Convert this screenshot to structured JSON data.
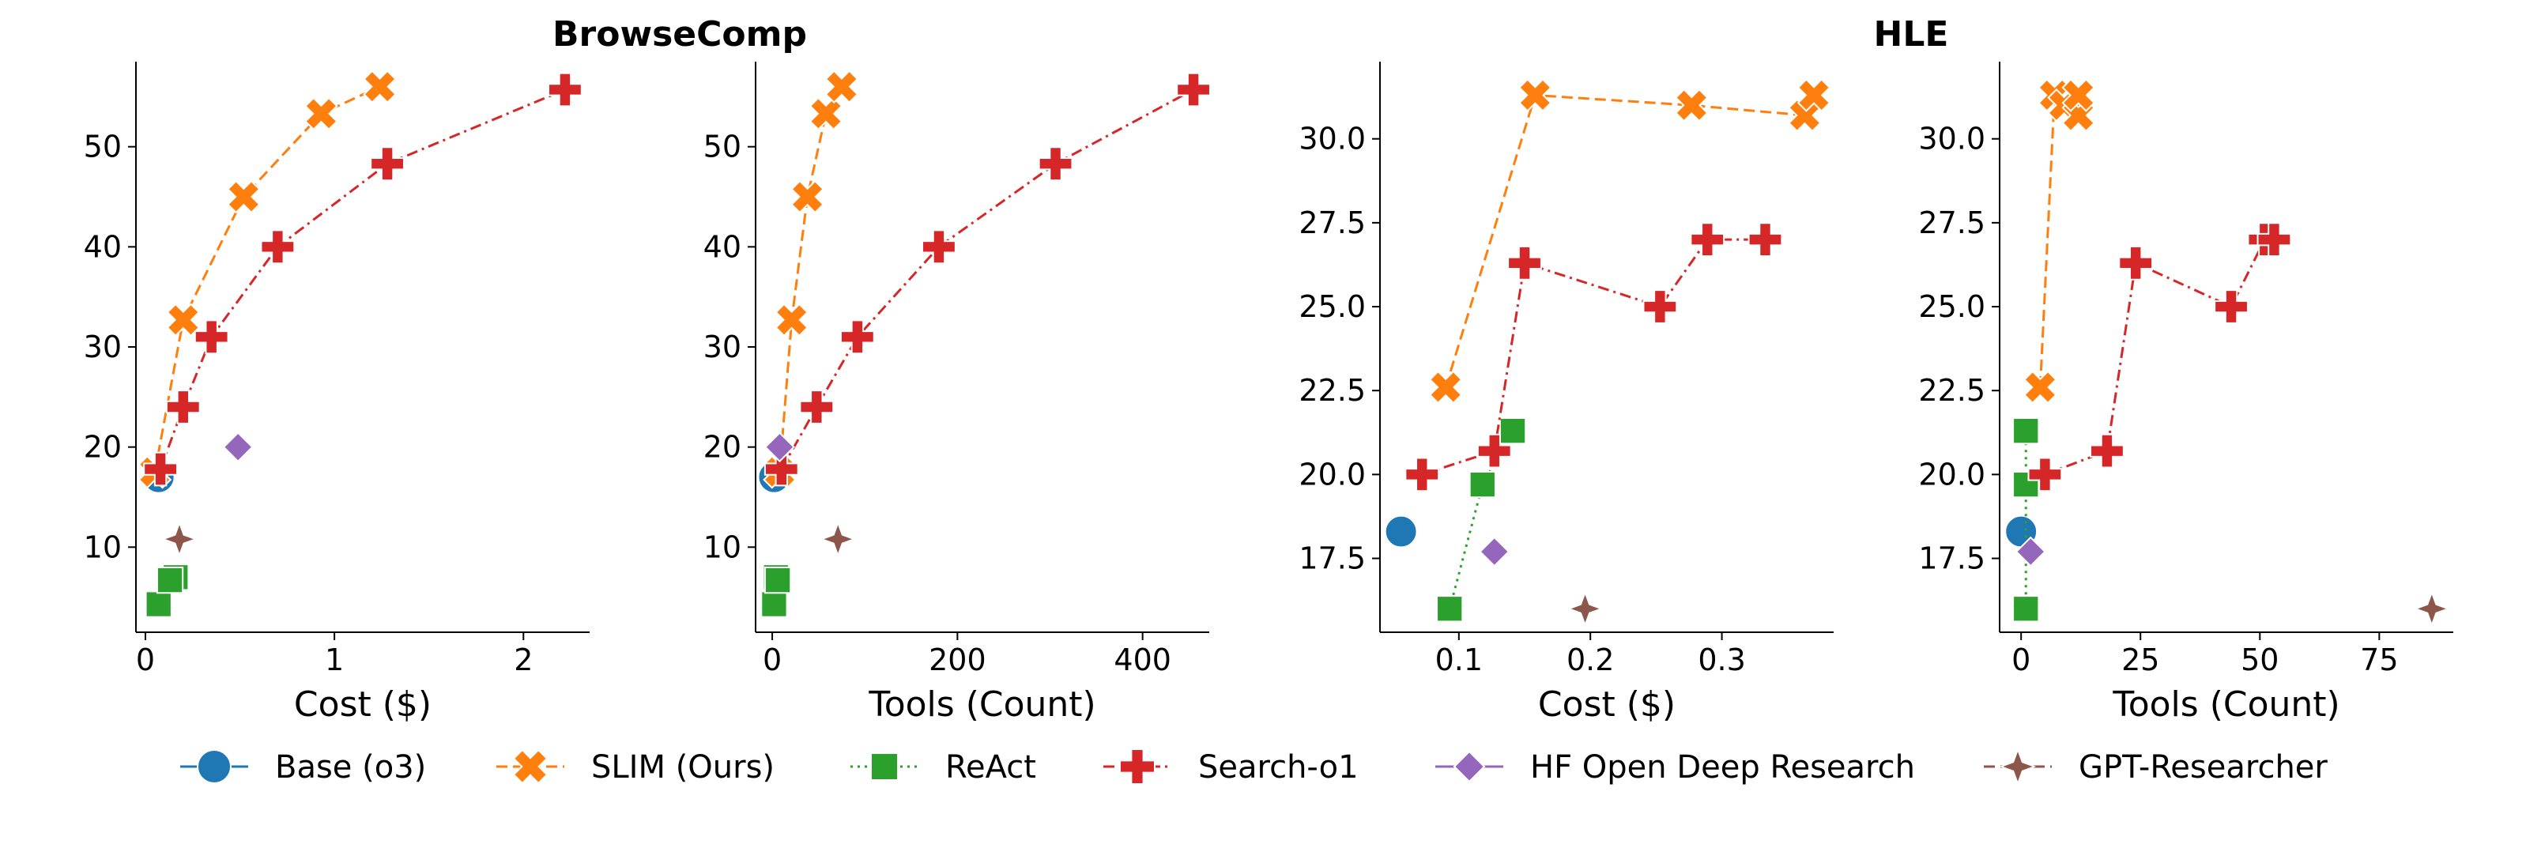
{
  "figure": {
    "group_titles": [
      "BrowseComp",
      "HLE"
    ]
  },
  "colors": {
    "Base (o3)": "#1f77b4",
    "SLIM (Ours)": "#ff7f0e",
    "ReAct": "#2ca02c",
    "Search-o1": "#d62728",
    "HF Open Deep Research": "#9467bd",
    "GPT-Researcher": "#8c564b"
  },
  "legend": {
    "entries": [
      {
        "name": "Base (o3)",
        "marker": "circle",
        "line": "solid"
      },
      {
        "name": "SLIM (Ours)",
        "marker": "x",
        "line": "dashed"
      },
      {
        "name": "ReAct",
        "marker": "square",
        "line": "dotted"
      },
      {
        "name": "Search-o1",
        "marker": "plus",
        "line": "dashdot"
      },
      {
        "name": "HF Open Deep Research",
        "marker": "diamond",
        "line": "solid"
      },
      {
        "name": "GPT-Researcher",
        "marker": "star4",
        "line": "dashed"
      }
    ],
    "placement": "bottom-center"
  },
  "chart_data": [
    {
      "type": "line",
      "group": "BrowseComp",
      "xlabel": "Cost ($)",
      "ylabel": "",
      "xlim": [
        -0.05,
        2.35
      ],
      "ylim": [
        1.5,
        58.5
      ],
      "xticks": [
        0,
        1,
        2
      ],
      "xtick_labels": [
        "0",
        "1",
        "2"
      ],
      "yticks": [
        10,
        20,
        30,
        40,
        50
      ],
      "ytick_labels": [
        "10",
        "20",
        "30",
        "40",
        "50"
      ],
      "grid": false,
      "series": [
        {
          "name": "Base (o3)",
          "x": [
            0.07
          ],
          "y": [
            17
          ]
        },
        {
          "name": "SLIM (Ours)",
          "x": [
            0.05,
            0.2,
            0.52,
            0.93,
            1.24
          ],
          "y": [
            17.5,
            32.7,
            45,
            53.3,
            56
          ]
        },
        {
          "name": "ReAct",
          "x": [
            0.07,
            0.16,
            0.13
          ],
          "y": [
            4.3,
            7,
            6.7
          ]
        },
        {
          "name": "Search-o1",
          "x": [
            0.08,
            0.2,
            0.35,
            0.7,
            1.28,
            2.22
          ],
          "y": [
            17.8,
            24,
            31,
            40,
            48.3,
            55.7
          ]
        },
        {
          "name": "HF Open Deep Research",
          "x": [
            0.49
          ],
          "y": [
            20
          ]
        },
        {
          "name": "GPT-Researcher",
          "x": [
            0.18
          ],
          "y": [
            10.8
          ]
        }
      ]
    },
    {
      "type": "line",
      "group": "BrowseComp",
      "xlabel": "Tools (Count)",
      "ylabel": "",
      "xlim": [
        -18,
        472
      ],
      "ylim": [
        1.5,
        58.5
      ],
      "xticks": [
        0,
        200,
        400
      ],
      "xtick_labels": [
        "0",
        "200",
        "400"
      ],
      "yticks": [
        10,
        20,
        30,
        40,
        50
      ],
      "ytick_labels": [
        "10",
        "20",
        "30",
        "40",
        "50"
      ],
      "grid": false,
      "series": [
        {
          "name": "Base (o3)",
          "x": [
            2
          ],
          "y": [
            17
          ]
        },
        {
          "name": "SLIM (Ours)",
          "x": [
            8,
            21,
            38,
            58,
            75
          ],
          "y": [
            17.5,
            32.7,
            45,
            53.3,
            56
          ]
        },
        {
          "name": "ReAct",
          "x": [
            2,
            4,
            6
          ],
          "y": [
            4.3,
            7,
            6.7
          ]
        },
        {
          "name": "Search-o1",
          "x": [
            10,
            48,
            92,
            180,
            306,
            455
          ],
          "y": [
            17.8,
            24,
            31,
            40,
            48.3,
            55.7
          ]
        },
        {
          "name": "HF Open Deep Research",
          "x": [
            8
          ],
          "y": [
            20
          ]
        },
        {
          "name": "GPT-Researcher",
          "x": [
            71
          ],
          "y": [
            10.8
          ]
        }
      ]
    },
    {
      "type": "line",
      "group": "HLE",
      "xlabel": "Cost ($)",
      "ylabel": "",
      "xlim": [
        0.04,
        0.385
      ],
      "ylim": [
        15.3,
        32.3
      ],
      "xticks": [
        0.1,
        0.2,
        0.3
      ],
      "xtick_labels": [
        "0.1",
        "0.2",
        "0.3"
      ],
      "yticks": [
        17.5,
        20.0,
        22.5,
        25.0,
        27.5,
        30.0
      ],
      "ytick_labels": [
        "17.5",
        "20.0",
        "22.5",
        "25.0",
        "27.5",
        "30.0"
      ],
      "grid": false,
      "series": [
        {
          "name": "Base (o3)",
          "x": [
            0.056
          ],
          "y": [
            18.3
          ]
        },
        {
          "name": "SLIM (Ours)",
          "x": [
            0.09,
            0.158,
            0.277,
            0.363,
            0.37
          ],
          "y": [
            22.6,
            31.3,
            31.0,
            30.7,
            31.3
          ]
        },
        {
          "name": "ReAct",
          "x": [
            0.093,
            0.118,
            0.141
          ],
          "y": [
            16.0,
            19.7,
            21.3
          ]
        },
        {
          "name": "Search-o1",
          "x": [
            0.072,
            0.127,
            0.15,
            0.253,
            0.289,
            0.333
          ],
          "y": [
            20.0,
            20.7,
            26.3,
            25.0,
            27.0,
            27.0
          ]
        },
        {
          "name": "HF Open Deep Research",
          "x": [
            0.127
          ],
          "y": [
            17.7
          ]
        },
        {
          "name": "GPT-Researcher",
          "x": [
            0.196
          ],
          "y": [
            16.0
          ]
        }
      ]
    },
    {
      "type": "line",
      "group": "HLE",
      "xlabel": "Tools (Count)",
      "ylabel": "",
      "xlim": [
        -4.5,
        90.5
      ],
      "ylim": [
        15.3,
        32.3
      ],
      "xticks": [
        0,
        25,
        50,
        75
      ],
      "xtick_labels": [
        "0",
        "25",
        "50",
        "75"
      ],
      "yticks": [
        17.5,
        20.0,
        22.5,
        25.0,
        27.5,
        30.0
      ],
      "ytick_labels": [
        "17.5",
        "20.0",
        "22.5",
        "25.0",
        "27.5",
        "30.0"
      ],
      "grid": false,
      "series": [
        {
          "name": "Base (o3)",
          "x": [
            0
          ],
          "y": [
            18.3
          ]
        },
        {
          "name": "SLIM (Ours)",
          "x": [
            4,
            7,
            9,
            12,
            12
          ],
          "y": [
            22.6,
            31.3,
            31.0,
            30.7,
            31.3
          ]
        },
        {
          "name": "ReAct",
          "x": [
            1,
            1,
            1
          ],
          "y": [
            16.0,
            19.7,
            21.3
          ]
        },
        {
          "name": "Search-o1",
          "x": [
            5,
            18,
            24,
            44,
            51,
            53
          ],
          "y": [
            20.0,
            20.7,
            26.3,
            25.0,
            27.0,
            27.0
          ]
        },
        {
          "name": "HF Open Deep Research",
          "x": [
            2
          ],
          "y": [
            17.7
          ]
        },
        {
          "name": "GPT-Researcher",
          "x": [
            86
          ],
          "y": [
            16.0
          ]
        }
      ]
    }
  ]
}
